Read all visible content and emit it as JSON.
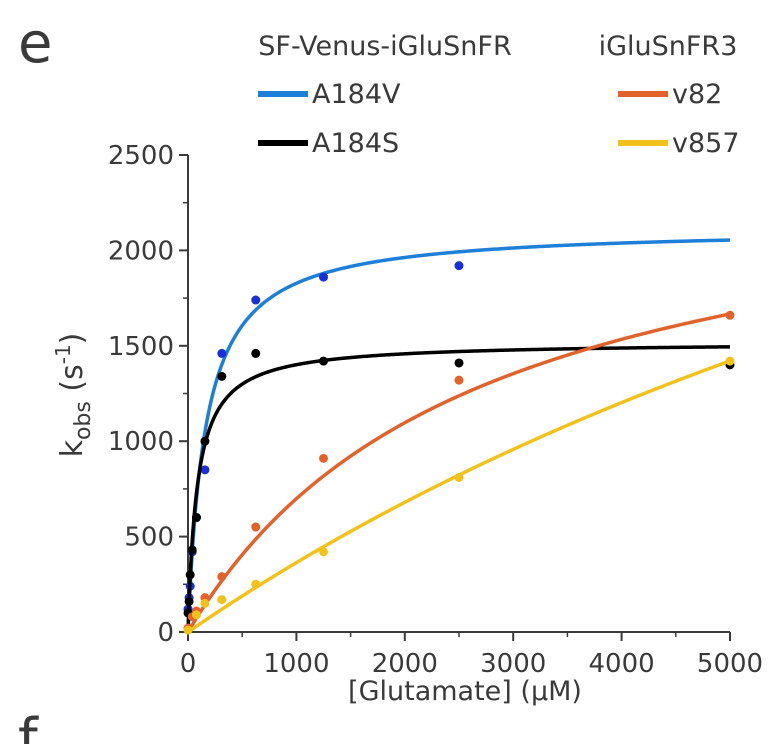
{
  "panel_labels": {
    "current": "e",
    "next": "f"
  },
  "chart_data": {
    "type": "scatter",
    "xlabel": "[Glutamate] (μM)",
    "ylabel_main": "k",
    "ylabel_sub": "obs",
    "ylabel_unit_open": " (s",
    "ylabel_unit_sup": "-1",
    "ylabel_unit_close": ")",
    "xlim": [
      0,
      5000
    ],
    "ylim": [
      0,
      2500
    ],
    "x_ticks": [
      0,
      1000,
      2000,
      3000,
      4000,
      5000
    ],
    "y_ticks": [
      0,
      500,
      1000,
      1500,
      2000,
      2500
    ],
    "grid": false,
    "legend": {
      "placement": "top",
      "groups": [
        {
          "title": "SF-Venus-iGluSnFR",
          "entries": [
            "A184V",
            "A184S"
          ]
        },
        {
          "title": "iGluSnFR3",
          "entries": [
            "v82",
            "v857"
          ]
        }
      ]
    },
    "series": [
      {
        "name": "A184V",
        "color": "#1e7fd8",
        "point_color": "#1a2fd8",
        "points": [
          [
            0,
            120
          ],
          [
            10,
            180
          ],
          [
            20,
            240
          ],
          [
            39,
            420
          ],
          [
            78,
            600
          ],
          [
            156,
            850
          ],
          [
            312,
            1460
          ],
          [
            625,
            1740
          ],
          [
            1250,
            1860
          ],
          [
            2500,
            1920
          ]
        ],
        "fit": {
          "model": "hyperbolic",
          "kmax": 2120,
          "k50": 160,
          "k0": 0
        }
      },
      {
        "name": "A184S",
        "color": "#000000",
        "point_color": "#000000",
        "points": [
          [
            0,
            100
          ],
          [
            10,
            160
          ],
          [
            20,
            300
          ],
          [
            39,
            430
          ],
          [
            78,
            600
          ],
          [
            156,
            1000
          ],
          [
            312,
            1340
          ],
          [
            625,
            1460
          ],
          [
            1250,
            1420
          ],
          [
            2500,
            1410
          ],
          [
            5000,
            1400
          ]
        ],
        "fit": {
          "model": "hyperbolic",
          "kmax": 1520,
          "k50": 85,
          "k0": 0
        }
      },
      {
        "name": "v82",
        "color": "#e2622c",
        "point_color": "#e2622c",
        "points": [
          [
            0,
            20
          ],
          [
            39,
            80
          ],
          [
            78,
            110
          ],
          [
            156,
            180
          ],
          [
            312,
            290
          ],
          [
            625,
            550
          ],
          [
            1250,
            910
          ],
          [
            2500,
            1320
          ],
          [
            5000,
            1660
          ]
        ],
        "fit": {
          "model": "hyperbolic",
          "kmax": 2550,
          "k50": 2650,
          "k0": 0
        }
      },
      {
        "name": "v857",
        "color": "#f2c21b",
        "point_color": "#f2c21b",
        "points": [
          [
            0,
            10
          ],
          [
            78,
            90
          ],
          [
            156,
            150
          ],
          [
            312,
            170
          ],
          [
            625,
            250
          ],
          [
            1250,
            420
          ],
          [
            2500,
            810
          ],
          [
            5000,
            1420
          ]
        ],
        "fit": {
          "model": "hyperbolic",
          "kmax": 5200,
          "k50": 13300,
          "k0": 0
        }
      }
    ]
  }
}
